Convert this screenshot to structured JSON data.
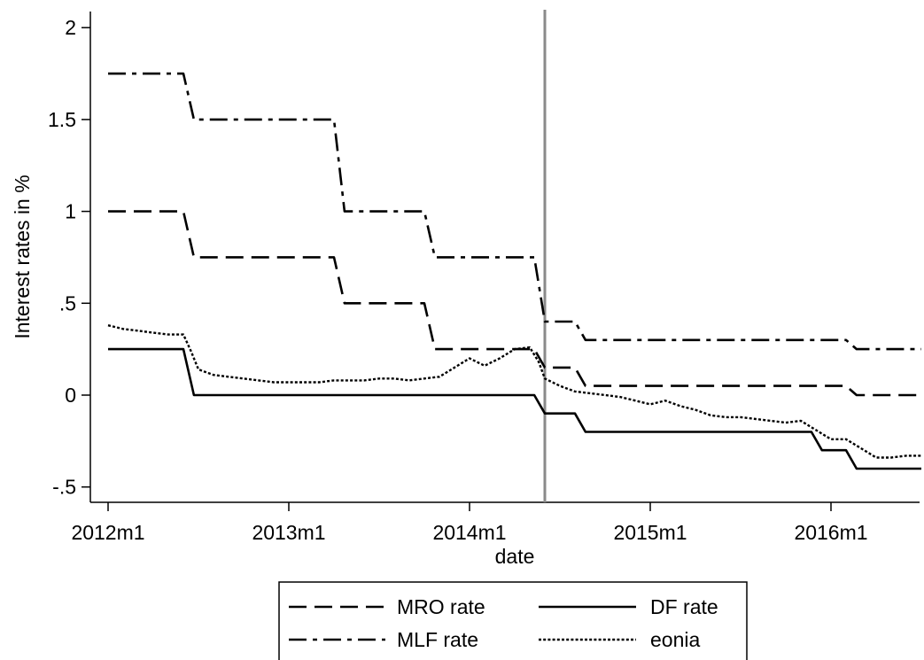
{
  "chart_data": {
    "type": "line",
    "title": "",
    "xlabel": "date",
    "ylabel": "Interest rates in %",
    "x_ticks": [
      {
        "value": 0,
        "label": "2012m1"
      },
      {
        "value": 12,
        "label": "2013m1"
      },
      {
        "value": 24,
        "label": "2014m1"
      },
      {
        "value": 36,
        "label": "2015m1"
      },
      {
        "value": 48,
        "label": "2016m1"
      }
    ],
    "y_ticks": [
      {
        "value": -0.5,
        "label": "-.5"
      },
      {
        "value": 0,
        "label": "0"
      },
      {
        "value": 0.5,
        "label": ".5"
      },
      {
        "value": 1,
        "label": "1"
      },
      {
        "value": 1.5,
        "label": "1.5"
      },
      {
        "value": 2,
        "label": "2"
      }
    ],
    "xlim": [
      0,
      54
    ],
    "ylim": [
      -0.6,
      2.05
    ],
    "vline": {
      "x": 29
    },
    "grid": false,
    "legend_position": "bottom",
    "series": [
      {
        "name": "MRO rate",
        "style": "dash",
        "points": [
          [
            0,
            1
          ],
          [
            5,
            1
          ],
          [
            5.7,
            0.75
          ],
          [
            15,
            0.75
          ],
          [
            15.7,
            0.5
          ],
          [
            21,
            0.5
          ],
          [
            21.7,
            0.25
          ],
          [
            28.3,
            0.25
          ],
          [
            29,
            0.15
          ],
          [
            31,
            0.15
          ],
          [
            31.7,
            0.05
          ],
          [
            49,
            0.05
          ],
          [
            49.7,
            0
          ],
          [
            54,
            0
          ]
        ]
      },
      {
        "name": "MLF rate",
        "style": "dashdot",
        "points": [
          [
            0,
            1.75
          ],
          [
            5,
            1.75
          ],
          [
            5.7,
            1.5
          ],
          [
            15,
            1.5
          ],
          [
            15.7,
            1.0
          ],
          [
            21,
            1.0
          ],
          [
            21.7,
            0.75
          ],
          [
            28.3,
            0.75
          ],
          [
            29,
            0.4
          ],
          [
            31,
            0.4
          ],
          [
            31.7,
            0.3
          ],
          [
            49,
            0.3
          ],
          [
            49.7,
            0.25
          ],
          [
            54,
            0.25
          ]
        ]
      },
      {
        "name": "DF rate",
        "style": "solid",
        "points": [
          [
            0,
            0.25
          ],
          [
            5,
            0.25
          ],
          [
            5.7,
            0
          ],
          [
            28.3,
            0
          ],
          [
            29,
            -0.1
          ],
          [
            31,
            -0.1
          ],
          [
            31.7,
            -0.2
          ],
          [
            46.7,
            -0.2
          ],
          [
            47.4,
            -0.3
          ],
          [
            49,
            -0.3
          ],
          [
            49.7,
            -0.4
          ],
          [
            54,
            -0.4
          ]
        ]
      },
      {
        "name": "eonia",
        "style": "dot",
        "points": [
          [
            0,
            0.38
          ],
          [
            1,
            0.36
          ],
          [
            2,
            0.35
          ],
          [
            3,
            0.34
          ],
          [
            4,
            0.33
          ],
          [
            5,
            0.33
          ],
          [
            5.5,
            0.24
          ],
          [
            6,
            0.14
          ],
          [
            7,
            0.11
          ],
          [
            8,
            0.1
          ],
          [
            9,
            0.09
          ],
          [
            10,
            0.08
          ],
          [
            11,
            0.07
          ],
          [
            12,
            0.07
          ],
          [
            13,
            0.07
          ],
          [
            14,
            0.07
          ],
          [
            15,
            0.08
          ],
          [
            16,
            0.08
          ],
          [
            17,
            0.08
          ],
          [
            18,
            0.09
          ],
          [
            19,
            0.09
          ],
          [
            20,
            0.08
          ],
          [
            21,
            0.09
          ],
          [
            22,
            0.1
          ],
          [
            23,
            0.15
          ],
          [
            24,
            0.2
          ],
          [
            25,
            0.16
          ],
          [
            26,
            0.2
          ],
          [
            27,
            0.25
          ],
          [
            28,
            0.26
          ],
          [
            28.6,
            0.18
          ],
          [
            29,
            0.09
          ],
          [
            30,
            0.05
          ],
          [
            31,
            0.02
          ],
          [
            32,
            0.01
          ],
          [
            33,
            0.0
          ],
          [
            34,
            -0.01
          ],
          [
            35,
            -0.03
          ],
          [
            36,
            -0.05
          ],
          [
            37,
            -0.03
          ],
          [
            38,
            -0.06
          ],
          [
            39,
            -0.08
          ],
          [
            40,
            -0.11
          ],
          [
            41,
            -0.12
          ],
          [
            42,
            -0.12
          ],
          [
            43,
            -0.13
          ],
          [
            44,
            -0.14
          ],
          [
            45,
            -0.15
          ],
          [
            46,
            -0.14
          ],
          [
            47,
            -0.19
          ],
          [
            48,
            -0.24
          ],
          [
            49,
            -0.24
          ],
          [
            50,
            -0.29
          ],
          [
            51,
            -0.34
          ],
          [
            52,
            -0.34
          ],
          [
            53,
            -0.33
          ],
          [
            54,
            -0.33
          ]
        ]
      }
    ]
  }
}
